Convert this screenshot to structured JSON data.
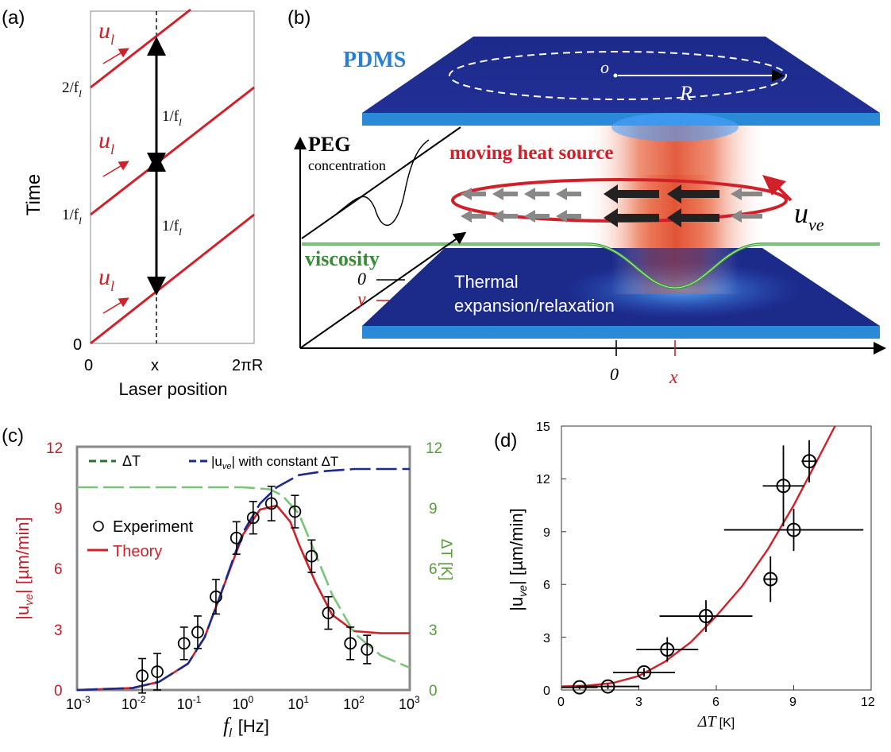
{
  "panels": {
    "a": {
      "label": "(a)",
      "ylabel": "Time",
      "xlabel": "Laser position",
      "xticks": [
        "0",
        "x",
        "2πR"
      ],
      "yticks": [
        "0",
        "1/f",
        "2/f"
      ],
      "ytick_sub": "l",
      "u_label": "u",
      "u_sub": "l",
      "period_label": "1/f",
      "period_sub": "l"
    },
    "b": {
      "label": "(b)",
      "pdms": "PDMS",
      "center": "o",
      "radius": "R",
      "peg": "PEG",
      "concentration": "concentration",
      "heat_source": "moving heat source",
      "viscosity": "viscosity",
      "zero_y": "0",
      "y": "y",
      "thermal_1": "Thermal",
      "thermal_2": "expansion/relaxation",
      "u_ve": "u",
      "u_ve_sub": "ve",
      "axis_zero": "0",
      "axis_x": "x"
    },
    "c": {
      "label": "(c)",
      "legend_dT": "ΔT",
      "legend_uve_pre": "|u",
      "legend_uve_sub": "ve",
      "legend_uve_post": "| with constant ΔT",
      "legend_exp": "Experiment",
      "legend_theory": "Theory",
      "ylabel_left_pre": "|u",
      "ylabel_left_sub": "ve",
      "ylabel_left_post": "| [µm/min]",
      "ylabel_right": "ΔT [K]",
      "xlabel_f": "f",
      "xlabel_sub": "l",
      "xlabel_unit": "[Hz]",
      "left_ticks": [
        "0",
        "3",
        "6",
        "9",
        "12"
      ],
      "right_ticks": [
        "0",
        "3",
        "6",
        "9",
        "12"
      ],
      "x_ticks": [
        {
          "base": "10",
          "exp": "-3"
        },
        {
          "base": "10",
          "exp": "-2"
        },
        {
          "base": "10",
          "exp": "-1"
        },
        {
          "base": "10",
          "exp": "0"
        },
        {
          "base": "10",
          "exp": "1"
        },
        {
          "base": "10",
          "exp": "2"
        },
        {
          "base": "10",
          "exp": "3"
        }
      ]
    },
    "d": {
      "label": "(d)",
      "ylabel_pre": "|u",
      "ylabel_sub": "ve",
      "ylabel_post": "| [µm/min]",
      "xlabel": "ΔT",
      "xlabel_unit": "[K]",
      "x_ticks": [
        "0",
        "3",
        "6",
        "9",
        "12"
      ],
      "y_ticks": [
        "0",
        "3",
        "6",
        "9",
        "12",
        "15"
      ]
    }
  },
  "chart_data": [
    {
      "panel": "c",
      "type": "scatter",
      "title": "",
      "xlabel": "f_l [Hz]",
      "ylabel": "|u_ve| [µm/min]",
      "ylabel_right": "ΔT [K]",
      "xscale": "log",
      "xlim": [
        0.001,
        1000
      ],
      "ylim": [
        0,
        12
      ],
      "ylim_right": [
        0,
        12
      ],
      "legend_position": "top",
      "series": [
        {
          "name": "Experiment",
          "kind": "points",
          "x": [
            0.015,
            0.028,
            0.085,
            0.15,
            0.32,
            0.75,
            1.5,
            3.2,
            8.5,
            17,
            34,
            85,
            170
          ],
          "y": [
            0.7,
            0.9,
            2.3,
            2.85,
            4.6,
            7.5,
            8.5,
            9.2,
            8.8,
            6.6,
            3.8,
            2.3,
            2.0
          ],
          "err": [
            0.85,
            0.9,
            0.8,
            0.8,
            0.85,
            0.8,
            0.8,
            0.85,
            0.8,
            0.8,
            0.8,
            0.8,
            0.7
          ]
        },
        {
          "name": "Theory",
          "kind": "line",
          "x": [
            0.001,
            0.01,
            0.03,
            0.1,
            0.2,
            0.4,
            0.7,
            1,
            2,
            4,
            7,
            10,
            20,
            40,
            100,
            300,
            1000
          ],
          "y": [
            0.0,
            0.1,
            0.4,
            1.3,
            2.6,
            4.8,
            6.6,
            7.7,
            8.9,
            9.1,
            8.3,
            7.2,
            5.3,
            3.7,
            2.9,
            2.8,
            2.8
          ]
        },
        {
          "name": "|u_ve| with constant ΔT",
          "kind": "dashed-line",
          "x": [
            0.001,
            0.01,
            0.03,
            0.1,
            0.2,
            0.4,
            0.7,
            1,
            2,
            4,
            10,
            30,
            100,
            1000
          ],
          "y": [
            0.0,
            0.1,
            0.4,
            1.3,
            2.6,
            4.8,
            6.7,
            7.8,
            9.2,
            10.0,
            10.6,
            10.8,
            10.9,
            10.9
          ]
        },
        {
          "name": "ΔT",
          "kind": "dashed-line",
          "axis": "right",
          "x": [
            0.001,
            0.01,
            0.1,
            1,
            3,
            5,
            10,
            20,
            40,
            100,
            300,
            1000
          ],
          "y": [
            10.0,
            10.0,
            10.0,
            10.0,
            9.9,
            9.6,
            8.7,
            6.7,
            4.7,
            2.8,
            1.7,
            1.1
          ]
        }
      ]
    },
    {
      "panel": "d",
      "type": "scatter",
      "title": "",
      "xlabel": "ΔT [K]",
      "ylabel": "|u_ve| [µm/min]",
      "xlim": [
        0,
        12
      ],
      "ylim": [
        0,
        15
      ],
      "series": [
        {
          "name": "data",
          "kind": "points",
          "x": [
            0.7,
            1.8,
            3.2,
            4.1,
            5.6,
            8.1,
            8.6,
            9.0,
            9.6
          ],
          "y": [
            0.15,
            0.2,
            1.0,
            2.3,
            4.2,
            6.3,
            11.6,
            9.1,
            13.0
          ],
          "xerr": [
            0.7,
            1.2,
            1.2,
            1.2,
            1.8,
            0.25,
            0.8,
            2.7,
            0.3
          ],
          "yerr": [
            0.1,
            0.15,
            0.25,
            0.7,
            0.9,
            1.3,
            2.3,
            1.2,
            1.2
          ]
        },
        {
          "name": "fit",
          "kind": "line",
          "x": [
            0,
            1,
            2,
            3,
            4,
            5,
            6,
            7,
            8,
            9,
            10,
            10.6
          ],
          "y": [
            0.2,
            0.25,
            0.4,
            0.8,
            1.6,
            2.7,
            4.2,
            5.9,
            8.0,
            10.5,
            13.3,
            15.0
          ]
        }
      ]
    }
  ]
}
